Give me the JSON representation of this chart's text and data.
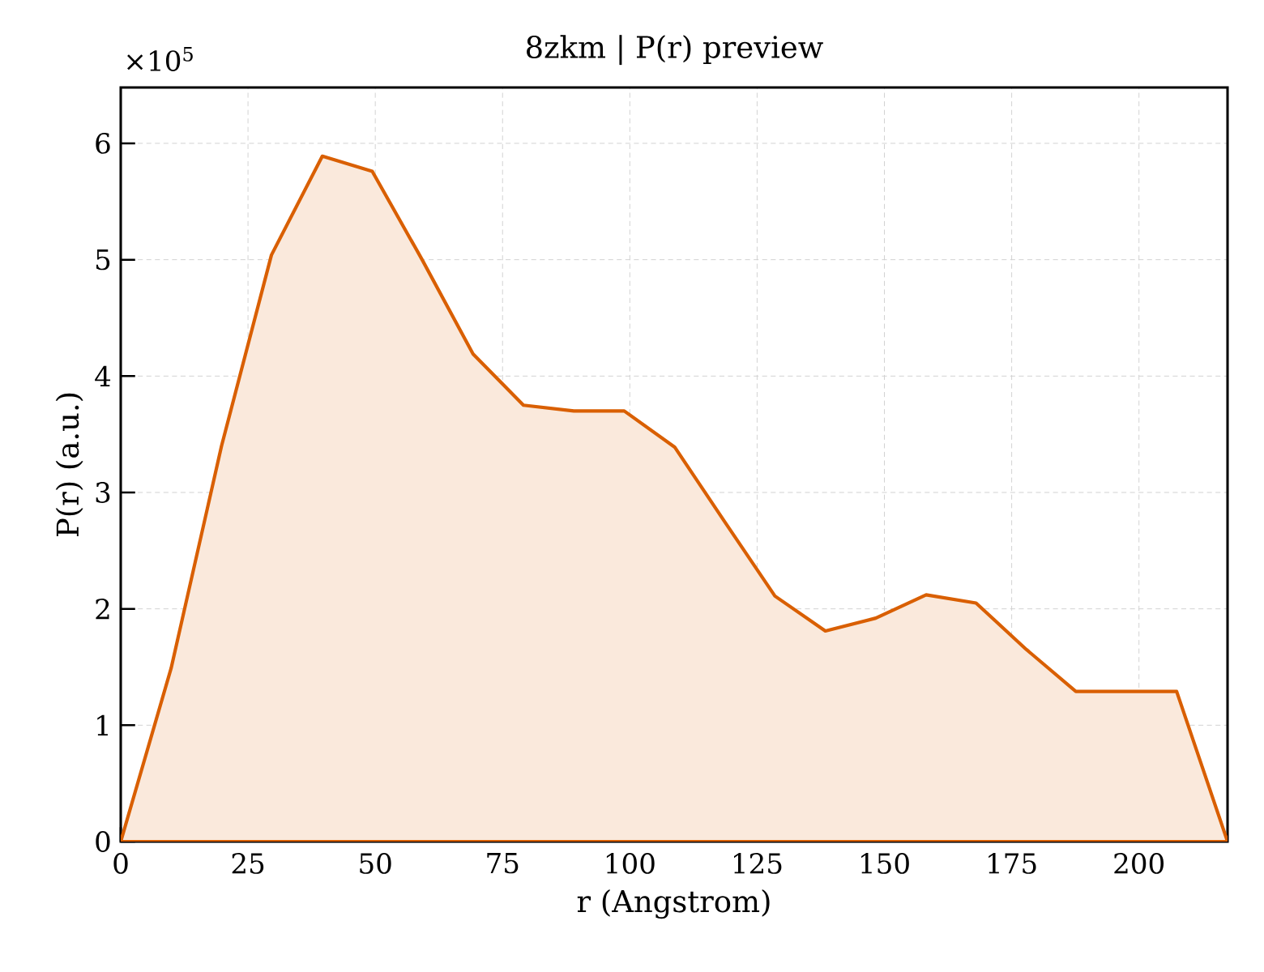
{
  "chart_data": {
    "type": "area",
    "title": "8zkm | P(r) preview",
    "xlabel": "r (Angstrom)",
    "ylabel": "P(r) (a.u.)",
    "annotations": [
      "×10$^{5}$"
    ],
    "x": [
      0,
      9.9,
      19.8,
      29.6,
      39.6,
      49.4,
      59.2,
      69.2,
      79.1,
      89.0,
      98.9,
      108.8,
      118.6,
      128.5,
      138.4,
      148.3,
      158.2,
      168.0,
      177.9,
      187.6,
      197.6,
      207.4,
      217.4
    ],
    "series": [
      {
        "color": "#d95f02",
        "values": [
          0,
          1.49,
          3.4,
          5.04,
          5.89,
          5.76,
          5.0,
          4.19,
          3.75,
          3.7,
          3.7,
          3.39,
          2.75,
          2.11,
          1.81,
          1.92,
          2.12,
          2.05,
          1.65,
          1.29,
          1.29,
          1.29,
          0
        ]
      }
    ],
    "xlim": [
      0,
      217.4
    ],
    "ylim": [
      0,
      6.48
    ],
    "xticks": [
      0,
      25,
      50,
      75,
      100,
      125,
      150,
      175,
      200
    ],
    "yticks": [
      0,
      1,
      2,
      3,
      4,
      5,
      6
    ],
    "grid": true
  }
}
